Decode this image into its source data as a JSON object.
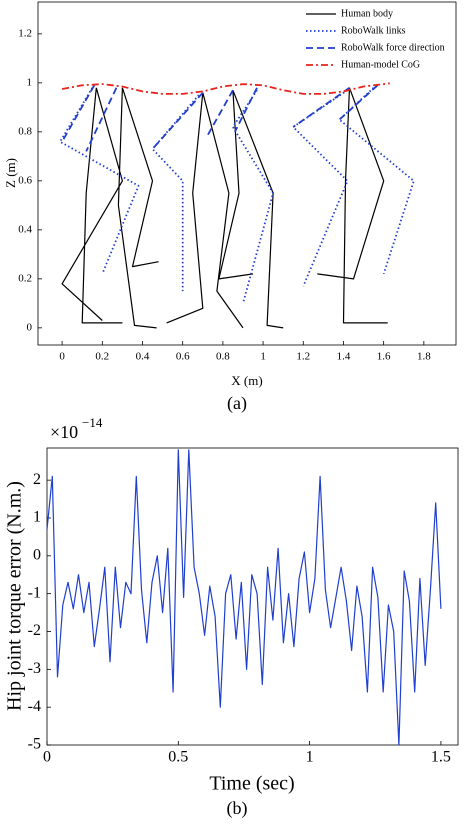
{
  "chart_data": [
    {
      "type": "line",
      "caption": "(a)",
      "x_label": "X (m)",
      "y_label": "Z (m)",
      "xlim": [
        -0.12,
        1.96
      ],
      "ylim": [
        -0.07,
        1.33
      ],
      "xticks": [
        0,
        0.2,
        0.4,
        0.6,
        0.8,
        1,
        1.2,
        1.4,
        1.6,
        1.8
      ],
      "yticks": [
        0,
        0.2,
        0.4,
        0.6,
        0.8,
        1,
        1.2
      ],
      "legend": "upper right",
      "series": [
        {
          "name": "Human body",
          "color": "#000000",
          "linestyle": "solid",
          "x": [
            0.17,
            0.12,
            0.1,
            0.3,
            null,
            0.17,
            0.3,
            0.0,
            0.2,
            null,
            0.3,
            0.28,
            0.36,
            0.47,
            null,
            0.3,
            0.45,
            0.35,
            0.48,
            null,
            0.7,
            0.65,
            0.7,
            0.52,
            null,
            0.7,
            0.83,
            0.77,
            0.9,
            null,
            0.85,
            0.88,
            0.78,
            0.95,
            null,
            0.85,
            1.05,
            1.02,
            1.1,
            null,
            1.43,
            1.41,
            1.4,
            1.62,
            null,
            1.43,
            1.6,
            1.45,
            1.27
          ],
          "values": [
            0.98,
            0.55,
            0.02,
            0.02,
            null,
            0.98,
            0.6,
            0.18,
            0.03,
            null,
            0.98,
            0.5,
            0.01,
            0.0,
            null,
            0.98,
            0.6,
            0.25,
            0.27,
            null,
            0.96,
            0.55,
            0.08,
            0.02,
            null,
            0.96,
            0.55,
            0.15,
            0.0,
            null,
            0.97,
            0.55,
            0.2,
            0.22,
            null,
            0.97,
            0.55,
            0.01,
            0.0,
            null,
            0.98,
            0.6,
            0.02,
            0.02,
            null,
            0.98,
            0.6,
            0.2,
            0.22
          ]
        },
        {
          "name": "RoboWalk links",
          "color": "#1f3fd0",
          "linestyle": "dotted",
          "x": [
            0.15,
            -0.01,
            0.38,
            0.2,
            null,
            0.68,
            0.45,
            0.6,
            0.6,
            null,
            0.97,
            0.85,
            1.05,
            0.9,
            null,
            1.42,
            1.15,
            1.42,
            1.2,
            null,
            1.55,
            1.38,
            1.75,
            1.6
          ],
          "values": [
            0.98,
            0.76,
            0.58,
            0.22,
            null,
            0.95,
            0.73,
            0.6,
            0.15,
            null,
            0.97,
            0.82,
            0.55,
            0.1,
            null,
            0.97,
            0.82,
            0.6,
            0.17,
            null,
            0.98,
            0.85,
            0.6,
            0.22
          ]
        },
        {
          "name": "RoboWalk force direction",
          "color": "#1f3fd0",
          "linestyle": "dashed",
          "x": [
            0.16,
            0.0,
            null,
            0.27,
            0.12,
            null,
            0.7,
            0.45,
            null,
            0.85,
            0.72,
            null,
            0.97,
            0.86,
            null,
            1.43,
            1.15,
            null,
            1.57,
            1.38
          ],
          "values": [
            0.99,
            0.76,
            null,
            0.98,
            0.72,
            null,
            0.96,
            0.73,
            null,
            0.97,
            0.78,
            null,
            0.98,
            0.8,
            null,
            0.98,
            0.82,
            null,
            0.99,
            0.85
          ]
        },
        {
          "name": "Human-model CoG",
          "color": "#e8231c",
          "linestyle": "dashdot",
          "x": [
            0,
            0.1,
            0.2,
            0.3,
            0.4,
            0.5,
            0.6,
            0.7,
            0.8,
            0.9,
            1.0,
            1.1,
            1.2,
            1.3,
            1.4,
            1.5,
            1.6,
            1.63
          ],
          "values": [
            0.975,
            0.99,
            0.995,
            0.985,
            0.965,
            0.955,
            0.955,
            0.965,
            0.985,
            0.995,
            0.99,
            0.97,
            0.955,
            0.955,
            0.965,
            0.985,
            0.995,
            0.998
          ]
        }
      ]
    },
    {
      "type": "line",
      "caption": "(b)",
      "x_label": "Time (sec)",
      "y_label": "Hip joint torque error (N.m.)",
      "y_multiplier": {
        "base": "×10",
        "exponent": "−14"
      },
      "xlim": [
        0,
        1.565
      ],
      "ylim": [
        -5,
        2.85
      ],
      "xticks": [
        0,
        0.5,
        1,
        1.5
      ],
      "yticks": [
        -5,
        -4,
        -3,
        -2,
        -1,
        0,
        1,
        2
      ],
      "series": [
        {
          "name": null,
          "color": "#1f3fd0",
          "linestyle": "solid",
          "x": [
            0,
            0.02,
            0.04,
            0.06,
            0.08,
            0.1,
            0.12,
            0.14,
            0.16,
            0.18,
            0.2,
            0.22,
            0.24,
            0.26,
            0.28,
            0.3,
            0.32,
            0.34,
            0.36,
            0.38,
            0.4,
            0.42,
            0.44,
            0.46,
            0.48,
            0.5,
            0.52,
            0.54,
            0.56,
            0.58,
            0.6,
            0.62,
            0.64,
            0.66,
            0.68,
            0.7,
            0.72,
            0.74,
            0.76,
            0.78,
            0.8,
            0.82,
            0.84,
            0.86,
            0.88,
            0.9,
            0.92,
            0.94,
            0.96,
            0.98,
            1.0,
            1.02,
            1.04,
            1.06,
            1.08,
            1.1,
            1.12,
            1.14,
            1.16,
            1.18,
            1.2,
            1.22,
            1.24,
            1.26,
            1.28,
            1.3,
            1.32,
            1.34,
            1.36,
            1.38,
            1.4,
            1.42,
            1.44,
            1.46,
            1.48,
            1.5
          ],
          "values": [
            0.7,
            2.1,
            -3.2,
            -1.3,
            -0.7,
            -1.4,
            -0.5,
            -1.5,
            -0.7,
            -2.4,
            -1.4,
            -0.3,
            -2.8,
            -0.3,
            -1.9,
            -0.7,
            -1.0,
            2.1,
            -0.9,
            -2.3,
            -0.7,
            0.0,
            -1.5,
            0.2,
            -3.6,
            2.8,
            -1.1,
            2.8,
            -0.3,
            -1.0,
            -2.1,
            -0.8,
            -1.6,
            -4.0,
            -1.0,
            -0.5,
            -2.2,
            -0.7,
            -3.0,
            -0.5,
            -1.0,
            -3.4,
            -0.3,
            -1.7,
            0.2,
            -2.3,
            -1.0,
            -2.4,
            -0.6,
            0.1,
            -1.5,
            -0.6,
            2.1,
            -0.9,
            -1.9,
            -1.1,
            -0.3,
            -1.2,
            -2.5,
            -0.8,
            -1.6,
            -3.6,
            -0.3,
            -1.1,
            -3.6,
            -1.3,
            -2.0,
            -5.0,
            -0.4,
            -1.2,
            -3.6,
            -0.6,
            -2.9,
            -0.9,
            1.4,
            -1.4
          ]
        }
      ]
    }
  ]
}
